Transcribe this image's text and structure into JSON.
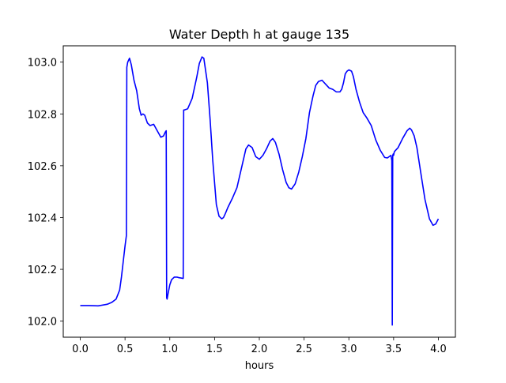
{
  "chart_data": {
    "type": "line",
    "title": "Water Depth h at gauge 135",
    "xlabel": "hours",
    "ylabel": "",
    "xlim": [
      -0.19,
      4.19
    ],
    "ylim": [
      101.938,
      103.063
    ],
    "xticks": [
      0.0,
      0.5,
      1.0,
      1.5,
      2.0,
      2.5,
      3.0,
      3.5,
      4.0
    ],
    "xtick_labels": [
      "0.0",
      "0.5",
      "1.0",
      "1.5",
      "2.0",
      "2.5",
      "3.0",
      "3.5",
      "4.0"
    ],
    "yticks": [
      102.0,
      102.2,
      102.4,
      102.6,
      102.8,
      103.0
    ],
    "ytick_labels": [
      "102.0",
      "102.2",
      "102.4",
      "102.6",
      "102.8",
      "103.0"
    ],
    "grid": false,
    "legend": "none",
    "series": [
      {
        "color": "#0000ff",
        "x": [
          0.0,
          0.1,
          0.2,
          0.3,
          0.35,
          0.4,
          0.44,
          0.46,
          0.48,
          0.5,
          0.515,
          0.52,
          0.525,
          0.53,
          0.55,
          0.57,
          0.6,
          0.63,
          0.66,
          0.68,
          0.7,
          0.72,
          0.75,
          0.78,
          0.82,
          0.86,
          0.9,
          0.93,
          0.95,
          0.96,
          0.965,
          0.97,
          0.98,
          1.0,
          1.02,
          1.05,
          1.08,
          1.1,
          1.15,
          1.155,
          1.16,
          1.2,
          1.25,
          1.3,
          1.33,
          1.36,
          1.38,
          1.42,
          1.45,
          1.48,
          1.52,
          1.55,
          1.58,
          1.6,
          1.62,
          1.65,
          1.7,
          1.75,
          1.8,
          1.85,
          1.88,
          1.92,
          1.96,
          2.0,
          2.04,
          2.08,
          2.12,
          2.15,
          2.18,
          2.22,
          2.26,
          2.3,
          2.33,
          2.36,
          2.4,
          2.44,
          2.48,
          2.52,
          2.56,
          2.6,
          2.63,
          2.66,
          2.7,
          2.74,
          2.78,
          2.82,
          2.86,
          2.9,
          2.92,
          2.94,
          2.96,
          2.98,
          3.0,
          3.03,
          3.05,
          3.08,
          3.12,
          3.16,
          3.2,
          3.25,
          3.3,
          3.35,
          3.4,
          3.43,
          3.45,
          3.47,
          3.48,
          3.485,
          3.49,
          3.495,
          3.5,
          3.505,
          3.51,
          3.55,
          3.6,
          3.65,
          3.68,
          3.7,
          3.73,
          3.76,
          3.8,
          3.85,
          3.9,
          3.94,
          3.97,
          4.0
        ],
        "y": [
          102.06,
          102.06,
          102.059,
          102.065,
          102.072,
          102.085,
          102.12,
          102.17,
          102.23,
          102.29,
          102.33,
          102.98,
          102.99,
          103.0,
          103.015,
          102.99,
          102.93,
          102.89,
          102.82,
          102.795,
          102.8,
          102.795,
          102.765,
          102.755,
          102.76,
          102.735,
          102.71,
          102.715,
          102.73,
          102.735,
          102.09,
          102.085,
          102.105,
          102.14,
          102.16,
          102.17,
          102.17,
          102.168,
          102.165,
          102.815,
          102.815,
          102.82,
          102.86,
          102.94,
          102.995,
          103.02,
          103.015,
          102.92,
          102.78,
          102.62,
          102.45,
          102.405,
          102.395,
          102.4,
          102.415,
          102.44,
          102.475,
          102.515,
          102.59,
          102.665,
          102.68,
          102.67,
          102.635,
          102.625,
          102.64,
          102.665,
          102.695,
          102.705,
          102.69,
          102.645,
          102.585,
          102.535,
          102.515,
          102.51,
          102.53,
          102.575,
          102.635,
          102.705,
          102.805,
          102.87,
          102.91,
          102.925,
          102.93,
          102.915,
          102.9,
          102.895,
          102.885,
          102.885,
          102.895,
          102.92,
          102.955,
          102.965,
          102.97,
          102.965,
          102.945,
          102.895,
          102.845,
          102.805,
          102.785,
          102.755,
          102.7,
          102.66,
          102.632,
          102.63,
          102.635,
          102.64,
          102.62,
          101.985,
          102.64,
          102.645,
          102.64,
          102.65,
          102.655,
          102.67,
          102.705,
          102.735,
          102.745,
          102.738,
          102.715,
          102.67,
          102.58,
          102.47,
          102.395,
          102.37,
          102.375,
          102.395
        ]
      }
    ]
  }
}
